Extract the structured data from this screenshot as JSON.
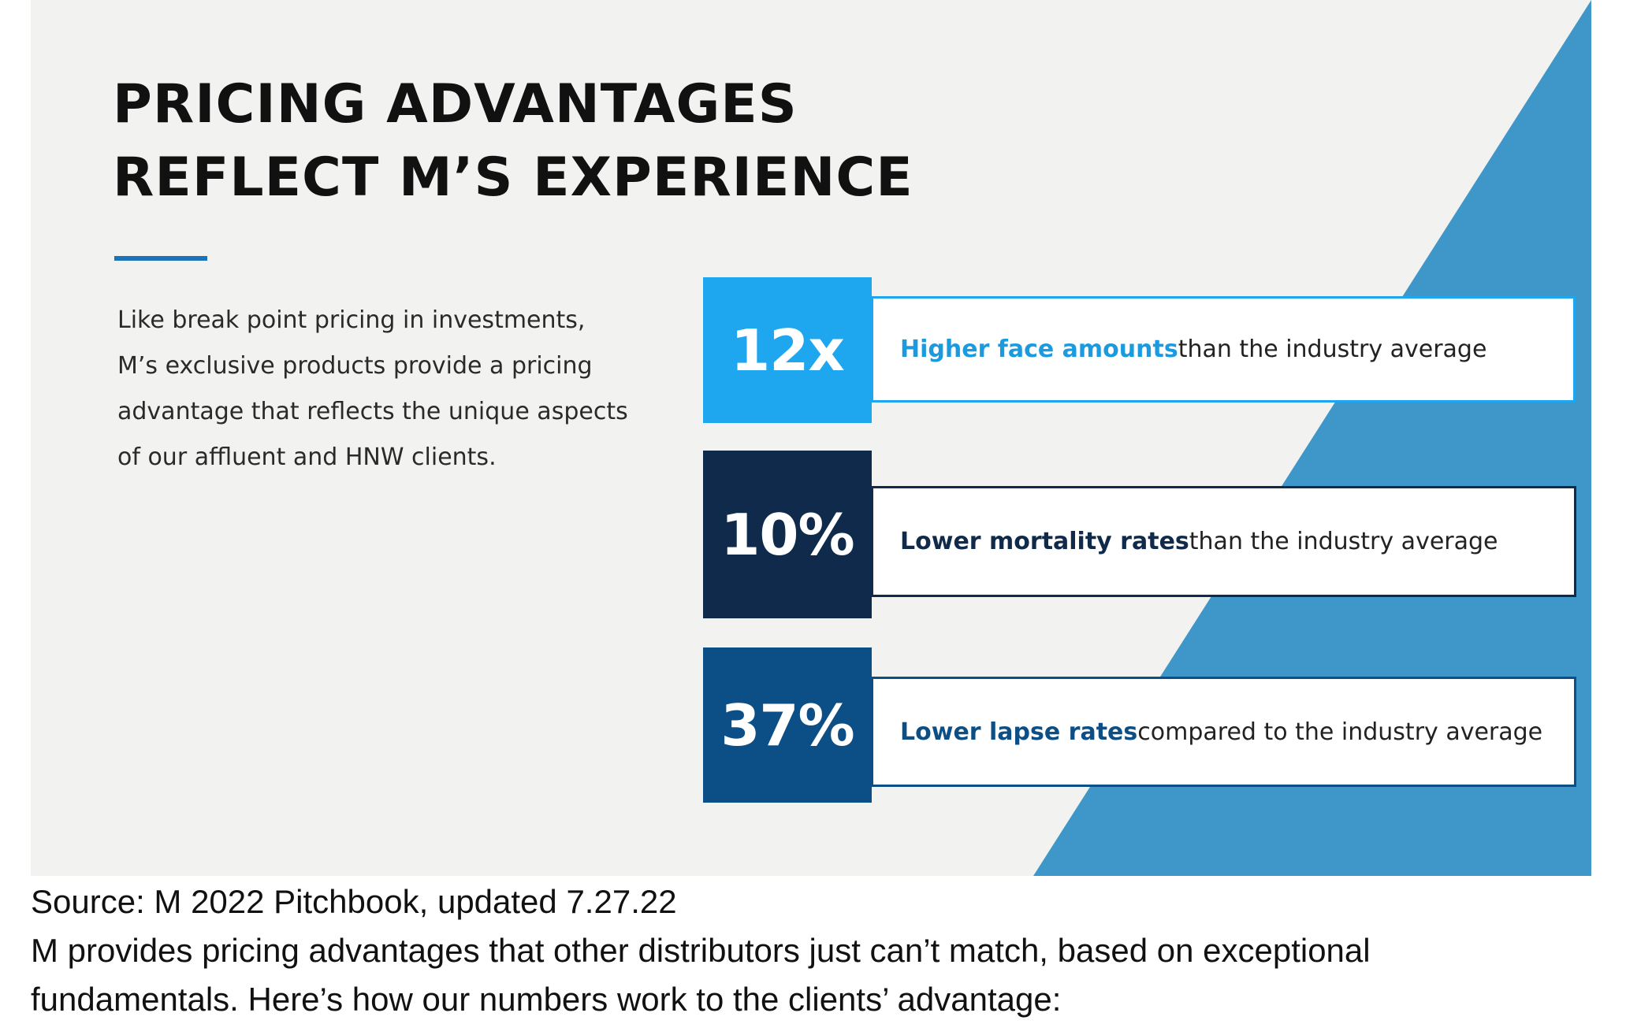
{
  "slide": {
    "title_line1": "PRICING ADVANTAGES",
    "title_line2": "REFLECT M’S EXPERIENCE",
    "intro_lines": [
      "Like break point pricing in investments,",
      "M’s exclusive products provide a pricing",
      "advantage that reflects the unique aspects",
      "of our affluent and HNW clients."
    ],
    "stats": [
      {
        "value": "12x",
        "highlight": "Higher face amounts",
        "rest": " than the industry average",
        "box_color": "#1ea7ee",
        "highlight_color": "#1a9be0",
        "border_color": "#1ea7ee"
      },
      {
        "value": "10%",
        "highlight": "Lower mortality rates",
        "rest": " than the industry average",
        "box_color": "#0f2a4a",
        "highlight_color": "#0f2a4a",
        "border_color": "#0f2a4a"
      },
      {
        "value": "37%",
        "highlight": "Lower lapse rates",
        "rest": " compared to the industry average",
        "box_color": "#0b4f86",
        "highlight_color": "#0b4f86",
        "border_color": "#0b4f86"
      }
    ],
    "colors": {
      "background": "#f2f3f1",
      "triangle": "#3e97c8",
      "accent": "#1b74bb"
    }
  },
  "footer": {
    "source": "Source: M 2022 Pitchbook, updated 7.27.22",
    "caption_line1": "M provides pricing advantages that other distributors just can’t match, based on exceptional",
    "caption_line2": "fundamentals. Here’s how our numbers work to the clients’ advantage:"
  }
}
